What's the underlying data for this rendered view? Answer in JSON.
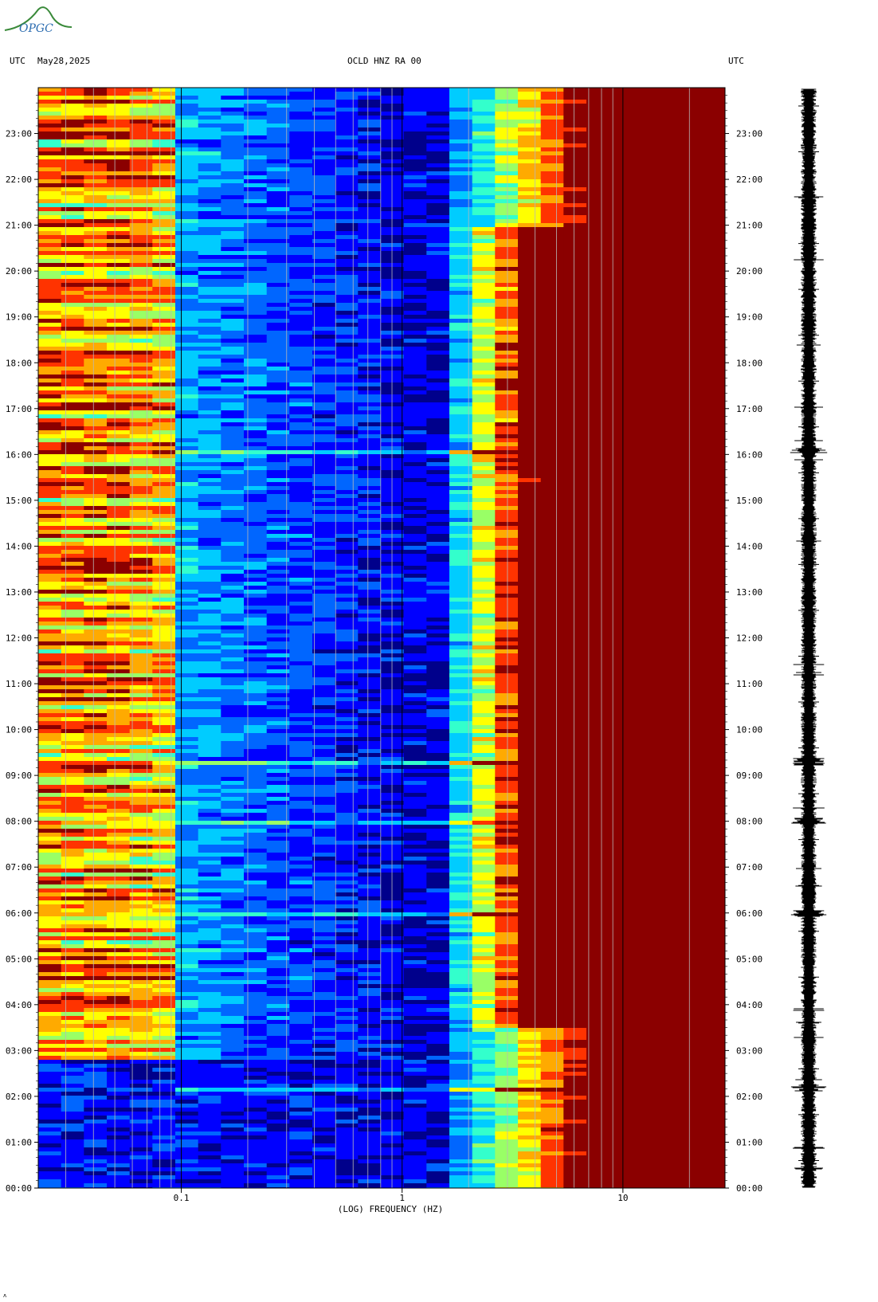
{
  "header": {
    "utc_left": "UTC",
    "date": "May28,2025",
    "station": "OCLD HNZ RA 00",
    "utc_right": "UTC"
  },
  "logo": {
    "text": "OPGC",
    "colors": {
      "arc": "#3a8a3a",
      "text": "#2b6cb0"
    }
  },
  "chart_data": {
    "type": "heatmap",
    "title": "OCLD HNZ RA 00",
    "xlabel": "(LOG) FREQUENCY (HZ)",
    "x_scale": "log",
    "xlim": [
      0.0225,
      29
    ],
    "x_ticks": [
      {
        "value": 0.1,
        "label": "0.1"
      },
      {
        "value": 1,
        "label": "1"
      },
      {
        "value": 10,
        "label": "10"
      }
    ],
    "y_unit": "UTC hour",
    "ylim": [
      0,
      24
    ],
    "y_ticks_left": [
      "00:00",
      "01:00",
      "02:00",
      "03:00",
      "04:00",
      "05:00",
      "06:00",
      "07:00",
      "08:00",
      "09:00",
      "10:00",
      "11:00",
      "12:00",
      "13:00",
      "14:00",
      "15:00",
      "16:00",
      "17:00",
      "18:00",
      "19:00",
      "20:00",
      "21:00",
      "22:00",
      "23:00"
    ],
    "y_ticks_right": [
      "00:00",
      "01:00",
      "02:00",
      "03:00",
      "04:00",
      "05:00",
      "06:00",
      "07:00",
      "08:00",
      "09:00",
      "10:00",
      "11:00",
      "12:00",
      "13:00",
      "14:00",
      "15:00",
      "16:00",
      "17:00",
      "18:00",
      "19:00",
      "20:00",
      "21:00",
      "22:00",
      "23:00"
    ],
    "colormap": [
      "#00008b",
      "#0000ff",
      "#0066ff",
      "#00ccff",
      "#33ffcc",
      "#99ff66",
      "#ffff00",
      "#ffaa00",
      "#ff3300",
      "#8b0000"
    ],
    "notable_lines_hz": [
      0.1,
      1,
      10
    ],
    "events_utc_hour": [
      2.2,
      6.0,
      8.0,
      9.3,
      16.1
    ],
    "high_freq_saturation_hz": 11
  }
}
